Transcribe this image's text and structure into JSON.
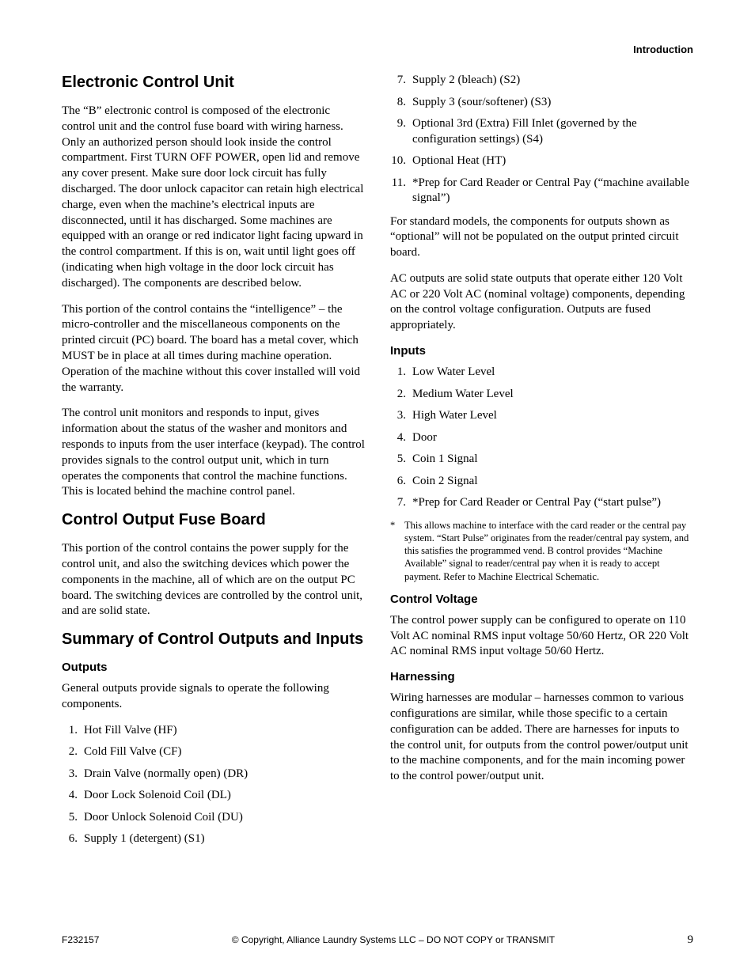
{
  "header": {
    "section_label": "Introduction"
  },
  "left": {
    "h_ecu": "Electronic Control Unit",
    "p_ecu_1": "The “B” electronic control is composed of the electronic control unit and the control fuse board with wiring harness. Only an authorized person should look inside the control compartment. First TURN OFF POWER, open lid and remove any cover present. Make sure door lock circuit has fully discharged. The door unlock capacitor can retain high electrical charge, even when the machine’s electrical inputs are disconnected, until it has discharged. Some machines are equipped with an orange or red indicator light facing upward in the control compartment. If this is on, wait until light goes off (indicating when high voltage in the door lock circuit has discharged). The components are described below.",
    "p_ecu_2": "This portion of the control contains the “intelligence” – the micro-controller and the miscellaneous components on the printed circuit (PC) board. The board has a metal cover, which MUST be in place at all times during machine operation. Operation of the machine without this cover installed will void the warranty.",
    "p_ecu_3": "The control unit monitors and responds to input, gives information about the status of the washer and monitors and responds to inputs from the user interface (keypad). The control provides signals to the control output unit, which in turn operates the components that control the machine functions. This is located behind the machine control panel.",
    "h_cofb": "Control Output Fuse Board",
    "p_cofb_1": "This portion of the control contains the power supply for the control unit, and also the switching devices which power the components in the machine, all of which are on the output PC board. The switching devices are controlled by the control unit, and are solid state.",
    "h_summary": "Summary of Control Outputs and Inputs",
    "h_outputs": "Outputs",
    "p_outputs_intro": "General outputs provide signals to operate the following components.",
    "outputs_list": [
      "Hot Fill Valve (HF)",
      "Cold Fill Valve (CF)",
      "Drain Valve (normally open) (DR)",
      "Door Lock Solenoid Coil (DL)",
      "Door Unlock Solenoid Coil (DU)",
      "Supply 1 (detergent) (S1)"
    ]
  },
  "right": {
    "outputs_cont": [
      {
        "n": "7.",
        "t": "Supply 2 (bleach) (S2)"
      },
      {
        "n": "8.",
        "t": "Supply 3 (sour/softener) (S3)"
      },
      {
        "n": "9.",
        "t": "Optional 3rd (Extra) Fill Inlet (governed by the configuration settings) (S4)"
      },
      {
        "n": "10.",
        "t": "Optional Heat (HT)"
      },
      {
        "n": "11.",
        "t": "*Prep for Card Reader or Central Pay (“machine available signal”)"
      }
    ],
    "p_std": "For standard models, the components for outputs shown as “optional” will not be populated on the output printed circuit board.",
    "p_ac": "AC outputs are solid state outputs that operate either 120 Volt AC or 220 Volt AC (nominal voltage) components, depending on the control voltage configuration. Outputs are fused appropriately.",
    "h_inputs": "Inputs",
    "inputs_list": [
      "Low Water Level",
      "Medium Water Level",
      "High Water Level",
      "Door",
      "Coin 1 Signal",
      "Coin 2 Signal",
      "*Prep for Card Reader or Central Pay (“start pulse”)"
    ],
    "footnote_star": "*",
    "footnote": "This allows machine to interface with the card reader or the central pay system. “Start Pulse” originates from the reader/central pay system, and this satisfies the programmed vend. B control provides “Machine Available” signal to reader/central pay when it is ready to accept payment. Refer to Machine Electrical Schematic.",
    "h_cv": "Control Voltage",
    "p_cv": "The control power supply can be configured to operate on 110 Volt AC nominal RMS input voltage 50/60 Hertz, OR 220 Volt AC nominal RMS input voltage 50/60 Hertz.",
    "h_harn": "Harnessing",
    "p_harn": "Wiring harnesses are modular – harnesses common to various configurations are similar, while those specific to a certain configuration can be added. There are harnesses for inputs to the control unit, for outputs from the control power/output unit to the machine components, and for the main incoming power to the control power/output unit."
  },
  "footer": {
    "docnum": "F232157",
    "copyright": "© Copyright, Alliance Laundry Systems LLC – DO NOT COPY or TRANSMIT",
    "pagenum": "9"
  }
}
